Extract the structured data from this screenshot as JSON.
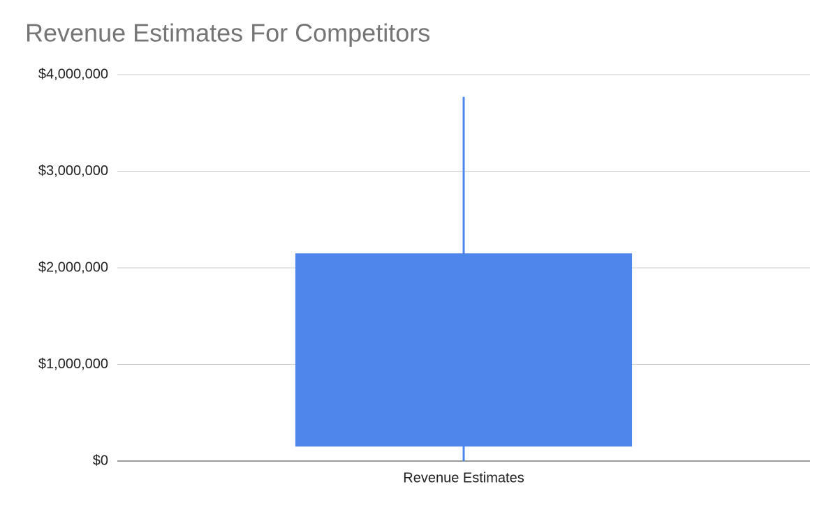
{
  "chart_data": {
    "type": "candlestick",
    "title": "Revenue Estimates For Competitors",
    "categories": [
      "Revenue Estimates"
    ],
    "series": [
      {
        "color": "#4f86ec",
        "low": [
          0
        ],
        "open": [
          150000
        ],
        "close": [
          2150000
        ],
        "high": [
          3770000
        ]
      }
    ],
    "ylim": [
      0,
      4000000
    ],
    "yticks": [
      {
        "value": 0,
        "label": "$0"
      },
      {
        "value": 1000000,
        "label": "$1,000,000"
      },
      {
        "value": 2000000,
        "label": "$2,000,000"
      },
      {
        "value": 3000000,
        "label": "$3,000,000"
      },
      {
        "value": 4000000,
        "label": "$4,000,000"
      }
    ],
    "grid": true
  }
}
